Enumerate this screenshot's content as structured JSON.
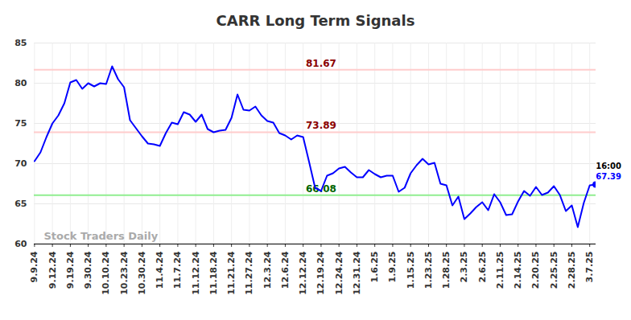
{
  "chart_data": {
    "type": "line",
    "title": "CARR Long Term Signals",
    "watermark": "Stock Traders Daily",
    "categories": [
      "9.9.24",
      null,
      null,
      "9.12.24",
      null,
      null,
      "9.19.24",
      null,
      null,
      "9.30.24",
      null,
      null,
      "10.10.24",
      null,
      null,
      "10.23.24",
      null,
      null,
      "10.30.24",
      null,
      null,
      "11.4.24",
      null,
      null,
      "11.7.24",
      null,
      null,
      "11.12.24",
      null,
      null,
      "11.18.24",
      null,
      null,
      "11.21.24",
      null,
      null,
      "11.27.24",
      null,
      null,
      "12.3.24",
      null,
      null,
      "12.6.24",
      null,
      null,
      "12.12.24",
      null,
      null,
      "12.19.24",
      null,
      null,
      "12.24.24",
      null,
      null,
      "12.31.24",
      null,
      null,
      "1.6.25",
      null,
      null,
      "1.9.25",
      null,
      null,
      "1.15.25",
      null,
      null,
      "1.23.25",
      null,
      null,
      "1.28.25",
      null,
      null,
      "2.3.25",
      null,
      null,
      "2.6.25",
      null,
      null,
      "2.11.25",
      null,
      null,
      "2.14.25",
      null,
      null,
      "2.20.25",
      null,
      null,
      "2.25.25",
      null,
      null,
      "2.28.25",
      null,
      null,
      "3.7.25",
      null
    ],
    "values": [
      70.3,
      71.4,
      73.3,
      75,
      76,
      77.5,
      80.1,
      80.4,
      79.3,
      80,
      79.6,
      80,
      79.9,
      82.1,
      80.5,
      79.5,
      75.4,
      74.4,
      73.4,
      72.5,
      72.4,
      72.2,
      73.8,
      75.1,
      74.9,
      76.4,
      76.1,
      75.2,
      76.1,
      74.3,
      73.9,
      74.1,
      74.2,
      75.7,
      78.6,
      76.7,
      76.6,
      77.1,
      76,
      75.3,
      75.1,
      73.8,
      73.5,
      73,
      73.5,
      73.3,
      70.2,
      67,
      66.6,
      68.5,
      68.8,
      69.4,
      69.6,
      68.9,
      68.3,
      68.3,
      69.2,
      68.7,
      68.3,
      68.5,
      68.5,
      66.5,
      67,
      68.8,
      69.8,
      70.6,
      69.9,
      70.1,
      67.5,
      67.3,
      64.8,
      65.9,
      63.1,
      63.8,
      64.6,
      65.2,
      64.2,
      66.2,
      65.2,
      63.6,
      63.7,
      65.3,
      66.6,
      66,
      67.1,
      66.1,
      66.4,
      67.2,
      66.1,
      64.1,
      64.8,
      62.1,
      65.1,
      67.3,
      67.39
    ],
    "color": "#0000ff",
    "ylim": [
      60,
      85
    ],
    "yticks": [
      60,
      65,
      70,
      75,
      80,
      85
    ],
    "grid": true,
    "levels": [
      {
        "value": 81.67,
        "color": "#ffcccc",
        "label_color": "#8b0000"
      },
      {
        "value": 73.89,
        "color": "#ffcccc",
        "label_color": "#8b0000"
      },
      {
        "value": 66.08,
        "color": "#90ee90",
        "label_color": "#006400"
      }
    ],
    "last_point": {
      "time": "16:00",
      "value": 67.39,
      "color": "#0000ff"
    }
  }
}
